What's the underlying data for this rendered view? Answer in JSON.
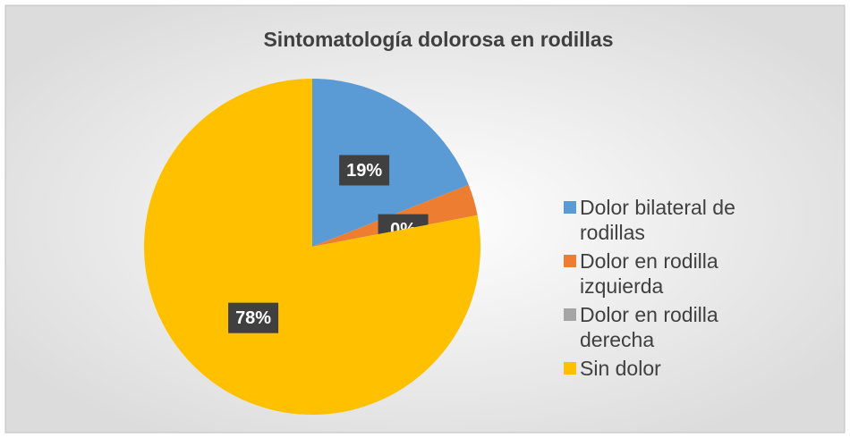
{
  "chart_data": {
    "type": "pie",
    "title": "Sintomatología dolorosa en rodillas",
    "categories": [
      "Dolor bilateral de rodillas",
      "Dolor en rodilla izquierda",
      "Dolor en rodilla derecha",
      "Sin dolor"
    ],
    "values": [
      19,
      3,
      0,
      78
    ],
    "value_labels": [
      "19%",
      null,
      "0%",
      "78%"
    ],
    "colors": [
      "#5b9bd5",
      "#ed7d31",
      "#a5a5a5",
      "#ffc000"
    ],
    "legend": "right"
  }
}
